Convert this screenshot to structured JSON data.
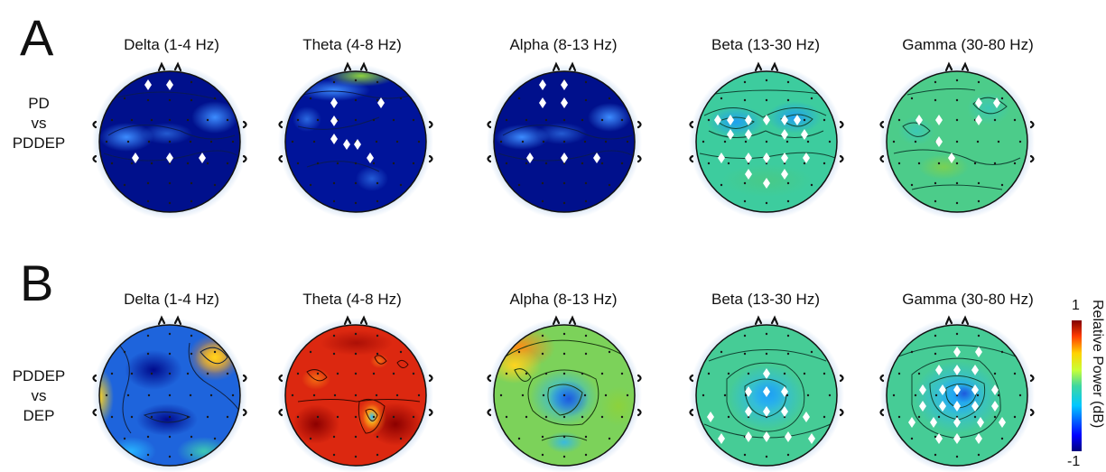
{
  "panels": [
    {
      "letter": "A",
      "row_label": [
        "PD",
        "vs",
        "PDDEP"
      ],
      "bands": [
        "Delta (1-4 Hz)",
        "Theta (4-8 Hz)",
        "Alpha (8-13 Hz)",
        "Beta (13-30 Hz)",
        "Gamma (30-80 Hz)"
      ]
    },
    {
      "letter": "B",
      "row_label": [
        "PDDEP",
        "vs",
        "DEP"
      ],
      "bands": [
        "Delta (1-4 Hz)",
        "Theta (4-8 Hz)",
        "Alpha (8-13 Hz)",
        "Beta (13-30 Hz)",
        "Gamma (30-80 Hz)"
      ]
    }
  ],
  "colorbar": {
    "title": "Relative Power (dB)",
    "max_label": "1",
    "min_label": "-1",
    "range": [
      -1,
      1
    ],
    "colormap": "jet"
  }
}
